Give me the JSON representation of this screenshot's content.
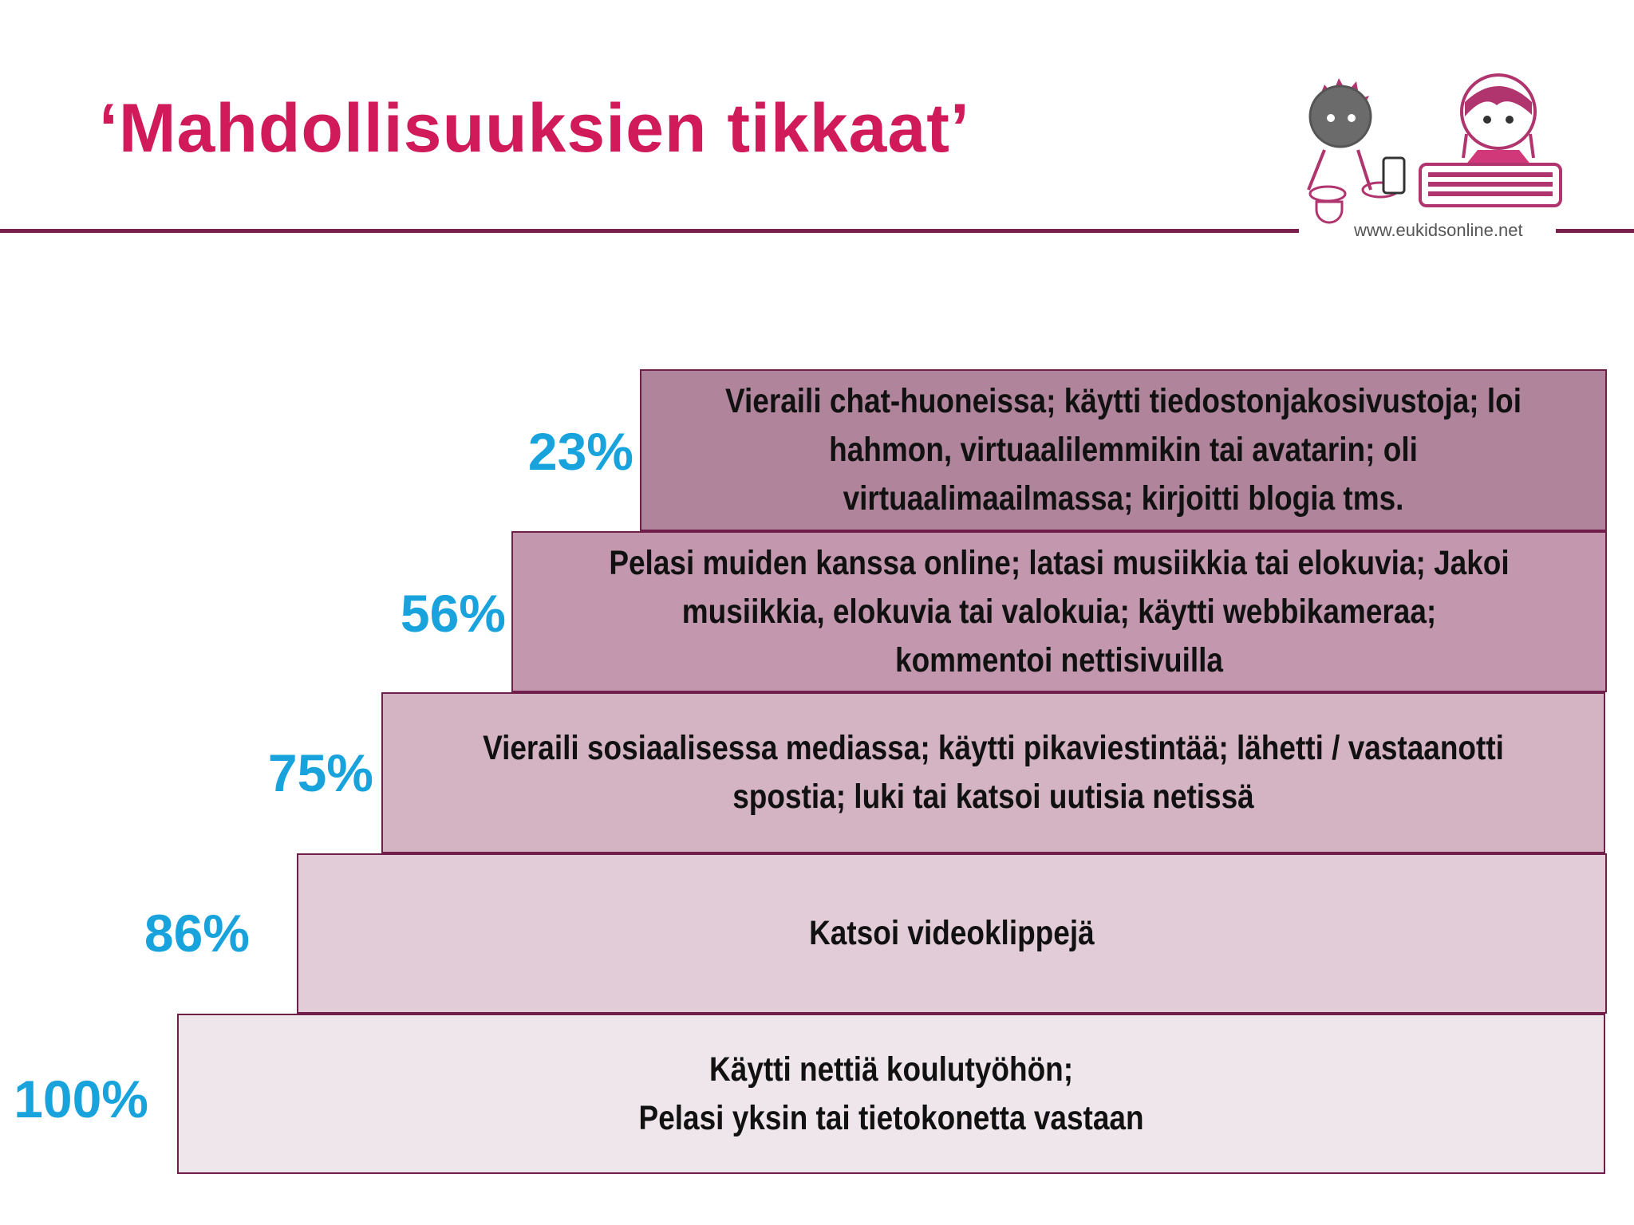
{
  "title": "‘Mahdollisuuksien tikkaat’",
  "logo": {
    "url": "www.eukidsonline.net",
    "icon": "eu-kids-online-logo"
  },
  "colors": {
    "title": "#d01a5a",
    "percent": "#19a3dc",
    "border": "#6f1f4a",
    "steps": [
      "#eee6ea",
      "#e2ccd7",
      "#d4b3c3",
      "#c398af",
      "#b0859c"
    ]
  },
  "steps": [
    {
      "percent": "100%",
      "value": 100,
      "text": "Käytti nettiä koulutyöhön;\nPelasi yksin tai tietokonetta vastaan"
    },
    {
      "percent": "86%",
      "value": 86,
      "text": "Katsoi videoklippejä"
    },
    {
      "percent": "75%",
      "value": 75,
      "text": "Vieraili sosiaalisessa mediassa; käytti pikaviestintää; lähetti / vastaanotti spostia; luki tai katsoi uutisia netissä"
    },
    {
      "percent": "56%",
      "value": 56,
      "text": "Pelasi muiden kanssa online; latasi musiikkia tai elokuvia; Jakoi musiikkia, elokuvia tai valokuia; käytti webbikameraa; kommentoi nettisivuilla"
    },
    {
      "percent": "23%",
      "value": 23,
      "text": "Vieraili chat-huoneissa; käytti tiedostonjakosivustoja; loi hahmon, virtuaalilemmikin tai avatarin; oli virtuaalimaailmassa; kirjoitti blogia tms."
    }
  ]
}
